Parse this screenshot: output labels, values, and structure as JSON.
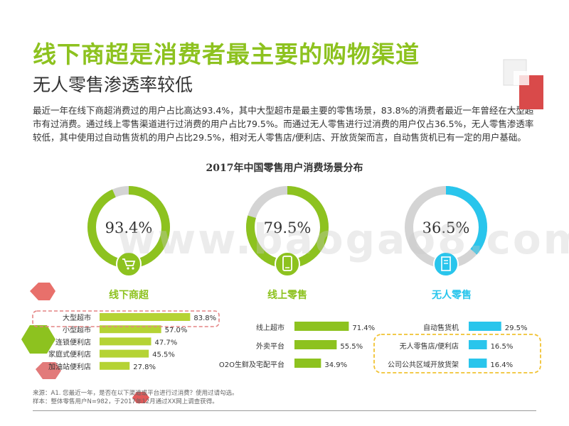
{
  "title": "线下商超是消费者最主要的购物渠道",
  "subtitle": "无人零售渗透率较低",
  "paragraph": "最近一年在线下商超消费过的用户占比高达93.4%，其中大型超市是最主要的零售场景，83.8%的消费者最近一年曾经在大型超市有过消费。通过线上零售渠道进行过消费的用户占比79.5%。而通过无人零售进行过消费的用户仅占36.5%，无人零售渗透率较低，其中使用过自动售货机的用户占比29.5%，相对无人零售店/便利店、开放货架而言，自动售货机已有一定的用户基础。",
  "watermark": "www.baogao8.com",
  "source_line1": "来源：A1. 您最近一年，是否在以下渠道或平台进行过消费？使用过请勾选。",
  "source_line2": "样本：整体零售用户N=982，于2017年12月通过XX网上调查获得。",
  "colors": {
    "green": "#8dc21f",
    "lime": "#b5d334",
    "cyan": "#29c5ec",
    "gray": "#d4d4d4",
    "red": "#e85a5a"
  },
  "icons": [
    "cart-icon",
    "mobile-phone-icon",
    "vending-machine-icon"
  ],
  "chart_data": {
    "type": "bar",
    "title": "2017年中国零售用户消费场景分布",
    "donuts": [
      {
        "name": "线下商超",
        "value": 93.4,
        "label": "93.4%",
        "color": "#8dc21f"
      },
      {
        "name": "线上零售",
        "value": 79.5,
        "label": "79.5%",
        "color": "#8dc21f"
      },
      {
        "name": "无人零售",
        "value": 36.5,
        "label": "36.5%",
        "color": "#29c5ec"
      }
    ],
    "groups": [
      {
        "name": "线下商超",
        "color": "#b5d334",
        "categories": [
          "大型超市",
          "小型超市",
          "连锁便利店",
          "家庭式便利店",
          "加油站便利店"
        ],
        "values": [
          83.8,
          57.0,
          47.7,
          45.5,
          27.8
        ],
        "labels": [
          "83.8%",
          "57.0%",
          "47.7%",
          "45.5%",
          "27.8%"
        ]
      },
      {
        "name": "线上零售",
        "color": "#8dc21f",
        "categories": [
          "线上超市",
          "外卖平台",
          "O2O生鲜及宅配平台"
        ],
        "values": [
          71.4,
          55.5,
          34.9
        ],
        "labels": [
          "71.4%",
          "55.5%",
          "34.9%"
        ]
      },
      {
        "name": "无人零售",
        "color": "#29c5ec",
        "categories": [
          "自动售货机",
          "无人零售店/便利店",
          "公司公共区域开放货架"
        ],
        "values": [
          29.5,
          16.5,
          16.4
        ],
        "labels": [
          "29.5%",
          "16.5%",
          "16.4%"
        ]
      }
    ],
    "xlim": [
      0,
      100
    ]
  }
}
